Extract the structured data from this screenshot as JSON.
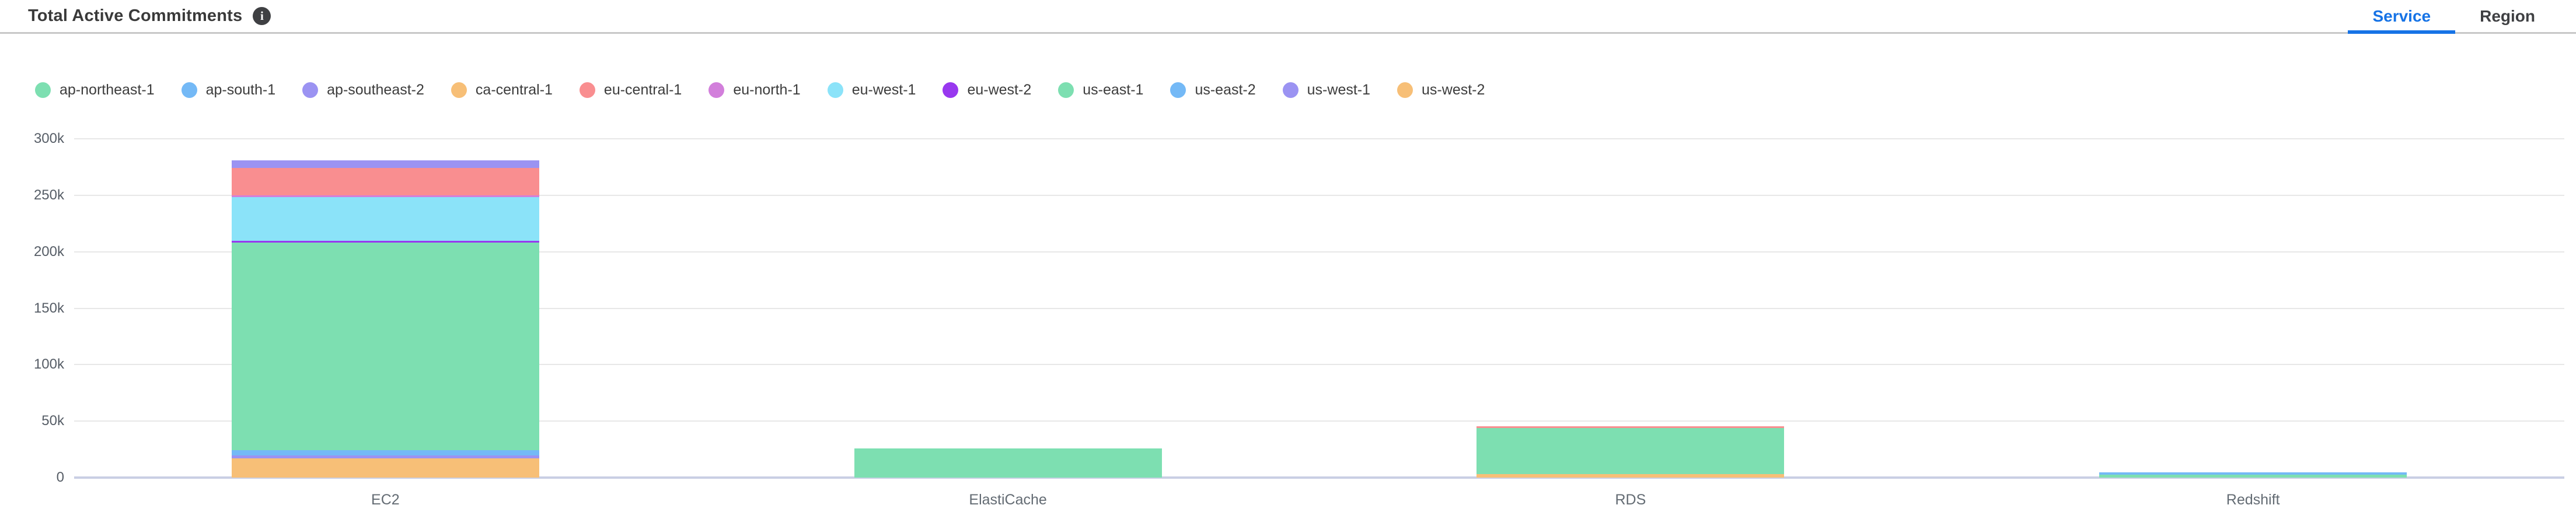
{
  "header": {
    "title": "Total Active Commitments",
    "info_icon": "info",
    "tabs": [
      {
        "label": "Service",
        "active": true
      },
      {
        "label": "Region",
        "active": false
      }
    ]
  },
  "colors": {
    "active_tab": "#1673e6",
    "header_border": "#c8c8c8",
    "gridline": "#e7e7e7",
    "zero_axis_line": "#c9cfe4",
    "ytick_text": "#565d66",
    "category_text": "#636b73",
    "legend_text": "#3c3c3c",
    "title_text": "#3a3a3a"
  },
  "chart_data": {
    "type": "bar",
    "stacked": true,
    "title": "Total Active Commitments",
    "xlabel": "",
    "ylabel": "",
    "ylim": [
      0,
      300000
    ],
    "yticks": [
      0,
      50000,
      100000,
      150000,
      200000,
      250000,
      300000
    ],
    "ytick_labels": [
      "0",
      "50k",
      "100k",
      "150k",
      "200k",
      "250k",
      "300k"
    ],
    "grid": true,
    "legend_position": "top",
    "stack_order": "last legend series at bottom of stack",
    "categories": [
      "EC2",
      "ElastiCache",
      "RDS",
      "Redshift"
    ],
    "series": [
      {
        "name": "ap-northeast-1",
        "color": "#7ddfb1",
        "values": [
          0,
          0,
          0,
          0
        ]
      },
      {
        "name": "ap-south-1",
        "color": "#74b9f6",
        "values": [
          0,
          0,
          0,
          2000
        ]
      },
      {
        "name": "ap-southeast-2",
        "color": "#9b93f2",
        "values": [
          7000,
          0,
          0,
          0
        ]
      },
      {
        "name": "ca-central-1",
        "color": "#f7bf77",
        "values": [
          0,
          0,
          0,
          0
        ]
      },
      {
        "name": "eu-central-1",
        "color": "#f98e90",
        "values": [
          24000,
          0,
          1200,
          0
        ]
      },
      {
        "name": "eu-north-1",
        "color": "#d27fdb",
        "values": [
          1500,
          0,
          0,
          0
        ]
      },
      {
        "name": "eu-west-1",
        "color": "#8be3f9",
        "values": [
          39000,
          0,
          0,
          0
        ]
      },
      {
        "name": "eu-west-2",
        "color": "#9838ef",
        "values": [
          1300,
          0,
          0,
          0
        ]
      },
      {
        "name": "us-east-1",
        "color": "#7ddfb1",
        "values": [
          184000,
          26000,
          41000,
          2500
        ]
      },
      {
        "name": "us-east-2",
        "color": "#74b9f6",
        "values": [
          4500,
          0,
          0,
          0
        ]
      },
      {
        "name": "us-west-1",
        "color": "#9b93f2",
        "values": [
          2800,
          0,
          0,
          0
        ]
      },
      {
        "name": "us-west-2",
        "color": "#f7bf77",
        "values": [
          17000,
          0,
          3000,
          0
        ]
      }
    ]
  }
}
